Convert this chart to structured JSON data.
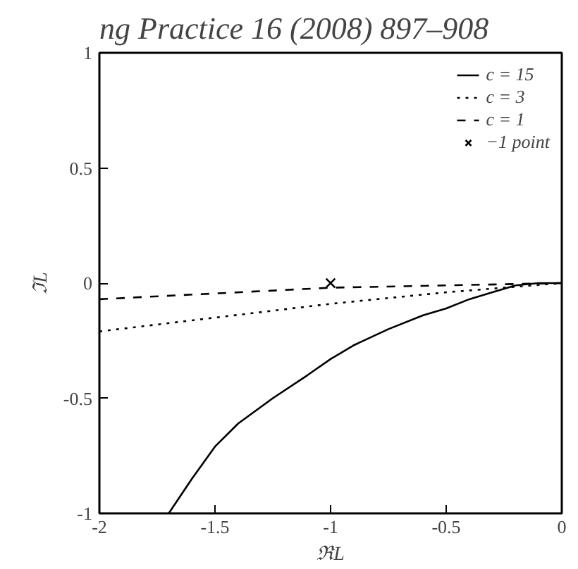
{
  "chart_data": {
    "type": "line",
    "xlabel": "ℜL",
    "ylabel": "ℑL",
    "annotations": [
      "ng Practice 16 (2008) 897–908"
    ],
    "xlim": [
      -2,
      0
    ],
    "ylim": [
      -1,
      1
    ],
    "xticks": [
      -2,
      -1.5,
      -1,
      -0.5,
      0
    ],
    "yticks": [
      -1,
      -0.5,
      0,
      0.5,
      1
    ],
    "grid": false,
    "legend": "top right",
    "series": [
      {
        "name": "c = 15",
        "line_style": "solid",
        "color": "#000000",
        "x": [
          -1.7,
          -1.6,
          -1.5,
          -1.4,
          -1.25,
          -1.1,
          -1,
          -0.9,
          -0.75,
          -0.6,
          -0.5,
          -0.4,
          -0.3,
          -0.2,
          -0.1,
          0
        ],
        "values": [
          -1,
          -0.85,
          -0.71,
          -0.61,
          -0.5,
          -0.4,
          -0.33,
          -0.27,
          -0.2,
          -0.14,
          -0.11,
          -0.07,
          -0.04,
          -0.01,
          0,
          0
        ]
      },
      {
        "name": "c = 3",
        "line_style": "dotted",
        "color": "#000000",
        "x": [
          -2,
          -1.5,
          -1,
          -0.5,
          0
        ],
        "values": [
          -0.21,
          -0.15,
          -0.09,
          -0.04,
          0
        ]
      },
      {
        "name": "c = 1",
        "line_style": "dashed",
        "color": "#000000",
        "x": [
          -2,
          -1.5,
          -1,
          -0.5,
          0
        ],
        "values": [
          -0.07,
          -0.045,
          -0.02,
          -0.01,
          0
        ]
      },
      {
        "name": "−1 point",
        "type": "scatter",
        "marker": "cross",
        "color": "#000000",
        "x": [
          -1
        ],
        "values": [
          0
        ]
      }
    ]
  }
}
